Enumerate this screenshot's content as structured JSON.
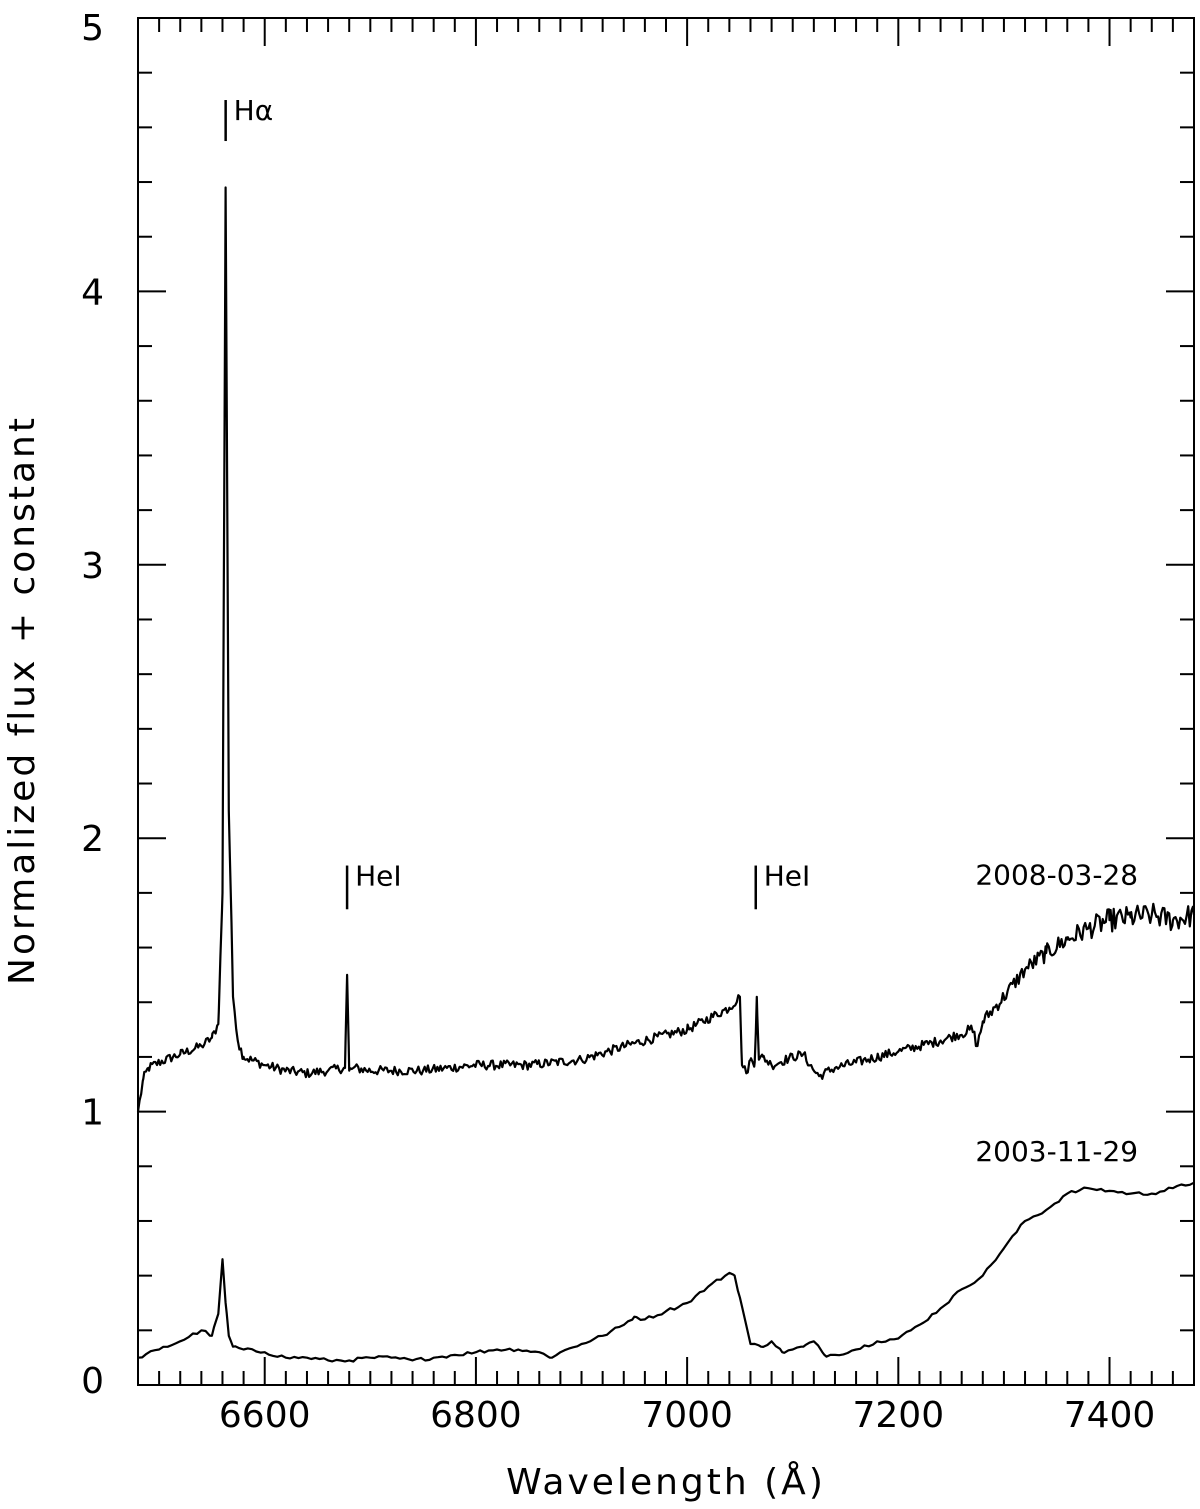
{
  "chart_data": {
    "type": "line",
    "title": "",
    "xlabel": "Wavelength (Å)",
    "ylabel": "Normalized flux + constant",
    "xlim": [
      6480,
      7480
    ],
    "ylim": [
      0,
      5
    ],
    "x_ticks": [
      6600,
      6800,
      7000,
      7200,
      7400
    ],
    "x_tick_labels": [
      "6600",
      "6800",
      "7000",
      "7200",
      "7400"
    ],
    "y_ticks": [
      0,
      1,
      2,
      3,
      4,
      5
    ],
    "y_tick_labels": [
      "0",
      "1",
      "2",
      "3",
      "4",
      "5"
    ],
    "grid": false,
    "series": [
      {
        "name": "2008-03-28",
        "noise": 0.018,
        "x": [
          6480,
          6485,
          6490,
          6500,
          6520,
          6540,
          6550,
          6556,
          6560,
          6563,
          6566,
          6570,
          6575,
          6580,
          6600,
          6620,
          6640,
          6660,
          6676,
          6678,
          6680,
          6684,
          6700,
          6750,
          6800,
          6850,
          6900,
          6950,
          7000,
          7040,
          7050,
          7052,
          7056,
          7060,
          7064,
          7066,
          7068,
          7072,
          7080,
          7100,
          7110,
          7120,
          7125,
          7140,
          7160,
          7180,
          7200,
          7240,
          7270,
          7275,
          7280,
          7300,
          7320,
          7340,
          7360,
          7380,
          7400,
          7420,
          7440,
          7460,
          7480
        ],
        "y": [
          1.0,
          1.12,
          1.16,
          1.18,
          1.21,
          1.24,
          1.27,
          1.32,
          1.8,
          4.38,
          2.1,
          1.42,
          1.25,
          1.2,
          1.17,
          1.15,
          1.14,
          1.15,
          1.16,
          1.5,
          1.15,
          1.16,
          1.15,
          1.15,
          1.17,
          1.17,
          1.19,
          1.25,
          1.3,
          1.38,
          1.42,
          1.17,
          1.14,
          1.19,
          1.18,
          1.42,
          1.19,
          1.2,
          1.17,
          1.2,
          1.21,
          1.15,
          1.13,
          1.16,
          1.18,
          1.2,
          1.22,
          1.26,
          1.3,
          1.24,
          1.33,
          1.42,
          1.52,
          1.58,
          1.63,
          1.67,
          1.7,
          1.71,
          1.72,
          1.7,
          1.72
        ]
      },
      {
        "name": "2003-11-29",
        "noise": 0.004,
        "x": [
          6480,
          6500,
          6520,
          6540,
          6550,
          6556,
          6560,
          6563,
          6566,
          6570,
          6580,
          6600,
          6620,
          6640,
          6660,
          6680,
          6700,
          6720,
          6740,
          6760,
          6780,
          6800,
          6820,
          6840,
          6860,
          6870,
          6880,
          6900,
          6920,
          6940,
          6950,
          6960,
          6980,
          7000,
          7020,
          7040,
          7045,
          7050,
          7060,
          7070,
          7080,
          7090,
          7100,
          7110,
          7120,
          7130,
          7140,
          7160,
          7180,
          7200,
          7220,
          7240,
          7260,
          7280,
          7300,
          7320,
          7340,
          7360,
          7380,
          7400,
          7420,
          7440,
          7460,
          7480
        ],
        "y": [
          0.1,
          0.13,
          0.16,
          0.2,
          0.18,
          0.26,
          0.46,
          0.3,
          0.18,
          0.14,
          0.13,
          0.12,
          0.1,
          0.1,
          0.09,
          0.09,
          0.1,
          0.1,
          0.09,
          0.1,
          0.11,
          0.12,
          0.13,
          0.13,
          0.12,
          0.1,
          0.12,
          0.15,
          0.18,
          0.22,
          0.25,
          0.24,
          0.27,
          0.3,
          0.36,
          0.41,
          0.4,
          0.32,
          0.15,
          0.14,
          0.16,
          0.12,
          0.13,
          0.14,
          0.16,
          0.11,
          0.11,
          0.13,
          0.16,
          0.17,
          0.22,
          0.28,
          0.35,
          0.4,
          0.5,
          0.6,
          0.64,
          0.7,
          0.72,
          0.71,
          0.7,
          0.7,
          0.72,
          0.74
        ]
      }
    ],
    "series_labels": [
      {
        "text": "2008-03-28",
        "x": 7350,
        "y": 1.83
      },
      {
        "text": "2003-11-29",
        "x": 7350,
        "y": 0.82
      }
    ],
    "annotations": [
      {
        "text": "Hα",
        "x": 6563,
        "y_tick_bottom": 4.55,
        "y_tick_top": 4.7
      },
      {
        "text": "HeI",
        "x": 6678,
        "y_tick_bottom": 1.74,
        "y_tick_top": 1.9
      },
      {
        "text": "HeI",
        "x": 7065,
        "y_tick_bottom": 1.74,
        "y_tick_top": 1.9
      }
    ]
  }
}
